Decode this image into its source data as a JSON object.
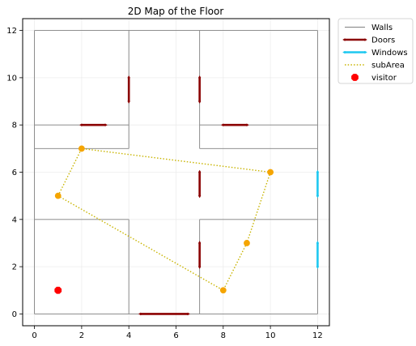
{
  "chart_data": {
    "type": "line",
    "title": "2D Map of the Floor",
    "xlabel": "",
    "ylabel": "",
    "xlim": [
      -0.5,
      12.5
    ],
    "ylim": [
      -0.5,
      12.5
    ],
    "xticks": [
      0,
      2,
      4,
      6,
      8,
      10,
      12
    ],
    "yticks": [
      0,
      2,
      4,
      6,
      8,
      10,
      12
    ],
    "grid": true,
    "legend_position": "outside-top-right",
    "legend": [
      "Walls",
      "Doors",
      "Windows",
      "subArea",
      "visitor"
    ],
    "colors": {
      "walls": "#808080",
      "doors": "#8b0000",
      "windows": "#1ec8f0",
      "subarea": "#c8b400",
      "subarea_marker": "#f5a500",
      "visitor": "#ff0000",
      "grid": "#ececec"
    },
    "series": [
      {
        "name": "Walls",
        "kind": "segments",
        "segments": [
          [
            [
              0,
              0
            ],
            [
              0,
              12
            ]
          ],
          [
            [
              0,
              12
            ],
            [
              12,
              12
            ]
          ],
          [
            [
              12,
              12
            ],
            [
              12,
              0
            ]
          ],
          [
            [
              12,
              0
            ],
            [
              0,
              0
            ]
          ],
          [
            [
              4,
              0
            ],
            [
              4,
              4
            ]
          ],
          [
            [
              4,
              7
            ],
            [
              4,
              12
            ]
          ],
          [
            [
              7,
              0
            ],
            [
              7,
              4
            ]
          ],
          [
            [
              7,
              7
            ],
            [
              7,
              12
            ]
          ],
          [
            [
              0,
              4
            ],
            [
              4,
              4
            ]
          ],
          [
            [
              0,
              7
            ],
            [
              4,
              7
            ]
          ],
          [
            [
              0,
              8
            ],
            [
              4,
              8
            ]
          ],
          [
            [
              7,
              4
            ],
            [
              12,
              4
            ]
          ],
          [
            [
              7,
              7
            ],
            [
              12,
              7
            ]
          ],
          [
            [
              7,
              8
            ],
            [
              12,
              8
            ]
          ]
        ]
      },
      {
        "name": "Doors",
        "kind": "segments",
        "segments": [
          [
            [
              4,
              9
            ],
            [
              4,
              10
            ]
          ],
          [
            [
              7,
              9
            ],
            [
              7,
              10
            ]
          ],
          [
            [
              2,
              8
            ],
            [
              3,
              8
            ]
          ],
          [
            [
              8,
              8
            ],
            [
              9,
              8
            ]
          ],
          [
            [
              7,
              5
            ],
            [
              7,
              6
            ]
          ],
          [
            [
              7,
              2
            ],
            [
              7,
              3
            ]
          ],
          [
            [
              4.5,
              0
            ],
            [
              6.5,
              0
            ]
          ]
        ]
      },
      {
        "name": "Windows",
        "kind": "segments",
        "segments": [
          [
            [
              12,
              5
            ],
            [
              12,
              6
            ]
          ],
          [
            [
              12,
              2
            ],
            [
              12,
              3
            ]
          ]
        ]
      },
      {
        "name": "subArea",
        "kind": "polygon",
        "points": [
          [
            1,
            5
          ],
          [
            2,
            7
          ],
          [
            10,
            6
          ],
          [
            9,
            3
          ],
          [
            8,
            1
          ],
          [
            1,
            5
          ]
        ]
      },
      {
        "name": "visitor",
        "kind": "points",
        "points": [
          [
            1,
            1
          ]
        ]
      }
    ]
  }
}
